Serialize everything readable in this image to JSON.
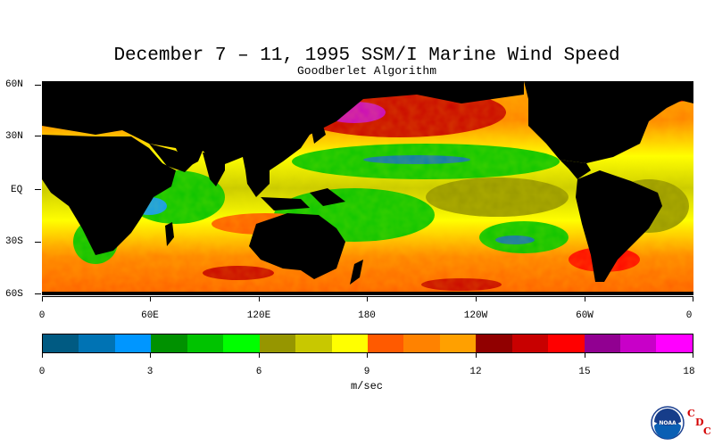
{
  "title": "December 7 – 11, 1995 SSM/I Marine Wind Speed",
  "subtitle": "Goodberlet Algorithm",
  "latitude_labels": [
    "60N",
    "30N",
    "EQ",
    "30S",
    "60S"
  ],
  "longitude_labels": [
    "0",
    "60E",
    "120E",
    "180",
    "120W",
    "60W",
    "0"
  ],
  "colorbar": {
    "colors": [
      "#005a82",
      "#0073b4",
      "#0096ff",
      "#009100",
      "#00c300",
      "#00ff00",
      "#969600",
      "#c8c800",
      "#ffff00",
      "#ff5a00",
      "#ff8200",
      "#ffa000",
      "#910000",
      "#c80000",
      "#ff0000",
      "#910091",
      "#c800c8",
      "#ff00ff"
    ],
    "tick_labels": [
      "0",
      "3",
      "6",
      "9",
      "12",
      "15",
      "18"
    ],
    "units": "m/sec"
  },
  "land_color": "#000000",
  "logo": {
    "name": "NOAA",
    "letters": [
      "C",
      "D",
      "C"
    ]
  }
}
